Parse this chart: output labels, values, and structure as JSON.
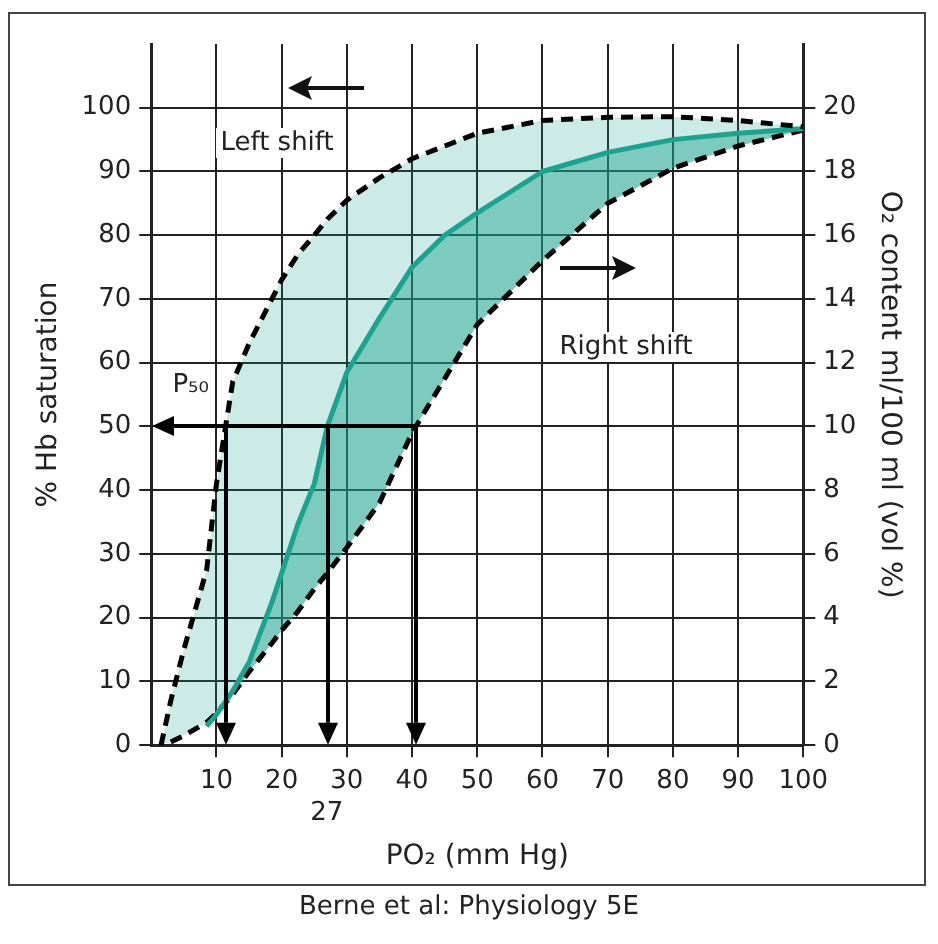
{
  "chart_data": {
    "type": "line",
    "xlabel": "PO₂ (mm Hg)",
    "ylabel": "% Hb saturation",
    "y2label": "O₂ content ml/100 ml (vol %)",
    "xlim": [
      0,
      100
    ],
    "xticks": [
      10,
      20,
      30,
      40,
      50,
      60,
      70,
      80,
      90,
      100
    ],
    "ylim": [
      0,
      110
    ],
    "yticks": [
      0,
      10,
      20,
      30,
      40,
      50,
      60,
      70,
      80,
      90,
      100
    ],
    "y2lim": [
      0,
      22
    ],
    "y2ticks": [
      0,
      2,
      4,
      6,
      8,
      10,
      12,
      14,
      16,
      18,
      20
    ],
    "grid": true,
    "legend": false,
    "x": [
      1.5,
      3,
      5,
      8.5,
      10,
      12.5,
      15,
      18.5,
      20,
      22.5,
      25,
      27,
      30,
      35,
      40,
      45,
      50,
      60,
      70,
      80,
      90,
      100
    ],
    "series": [
      {
        "type": "line",
        "color": "#000000",
        "line_style": "dashed",
        "values": [
          0,
          7,
          15,
          27.5,
          41,
          57,
          63,
          70,
          73,
          77,
          80,
          82.5,
          85.5,
          89,
          92,
          94,
          96,
          98,
          98.5,
          98.6,
          98,
          97
        ]
      },
      {
        "type": "line",
        "color": "#1aa38f",
        "line_style": "solid",
        "values": [
          null,
          null,
          null,
          3,
          4.8,
          8.5,
          13,
          22.4,
          27,
          34.7,
          41,
          50,
          58.5,
          67,
          75,
          80,
          83.5,
          90,
          93,
          95,
          96,
          96.7
        ],
        "upper": [
          0,
          7,
          15,
          27.5,
          41,
          57,
          63,
          70,
          73,
          77,
          80,
          82.5,
          85.5,
          89,
          92,
          94,
          96,
          98,
          98.5,
          98.6,
          98,
          97
        ],
        "lower": [
          0,
          0.5,
          1.5,
          3.6,
          5,
          8,
          11.5,
          16,
          18,
          21,
          24.5,
          27,
          31,
          38,
          49,
          57.5,
          66,
          76,
          85,
          90.5,
          94,
          96.5
        ]
      },
      {
        "type": "line",
        "color": "#000000",
        "line_style": "dashed",
        "values": [
          null,
          0.5,
          1.5,
          3.6,
          5,
          8,
          11.5,
          16,
          18,
          21,
          24.5,
          27,
          31,
          38,
          49,
          57.5,
          66,
          76,
          85,
          90.5,
          94,
          96.5
        ]
      }
    ],
    "annotations": [
      "Left shift",
      "Right shift",
      {
        "text": "P₅₀",
        "x": 10,
        "y": 50
      },
      "27",
      "Berne et al: Physiology 5E"
    ]
  }
}
